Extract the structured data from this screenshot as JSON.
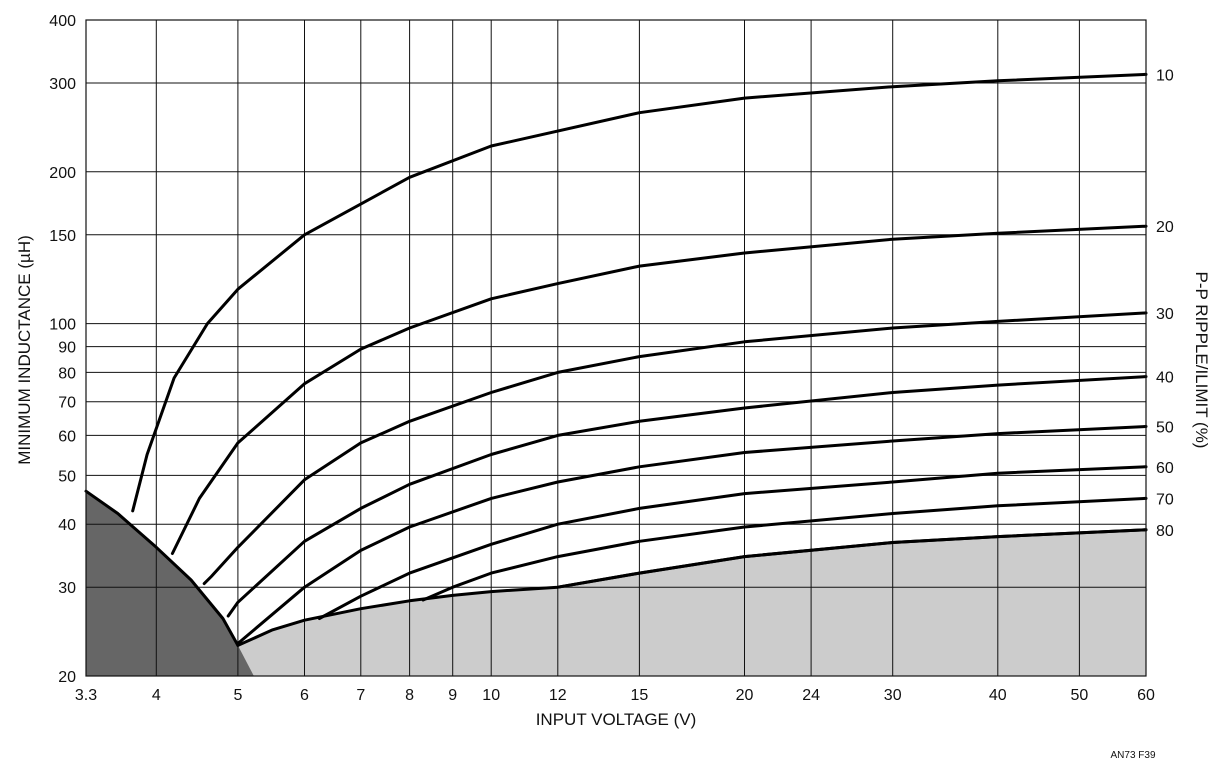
{
  "chart_data": {
    "type": "line",
    "xlabel": "INPUT VOLTAGE (V)",
    "ylabel": "MINIMUM INDUCTANCE (µH)",
    "y2label": "P-P RIPPLE/ILIMIT (%)",
    "figure_id": "AN73 F39",
    "x_scale": "log",
    "y_scale": "log",
    "xlim": [
      3.3,
      60
    ],
    "ylim": [
      20,
      400
    ],
    "grid": true,
    "x_ticks": [
      3.3,
      4,
      5,
      6,
      7,
      8,
      9,
      10,
      12,
      15,
      20,
      24,
      30,
      40,
      50,
      60
    ],
    "x_tick_labels": [
      "3.3",
      "4",
      "5",
      "6",
      "7",
      "8",
      "9",
      "10",
      "12",
      "15",
      "20",
      "24",
      "30",
      "40",
      "50",
      "60"
    ],
    "y_ticks": [
      20,
      30,
      40,
      50,
      60,
      70,
      80,
      90,
      100,
      150,
      200,
      300,
      400
    ],
    "y_tick_labels": [
      "20",
      "30",
      "40",
      "50",
      "60",
      "70",
      "80",
      "90",
      "100",
      "150",
      "200",
      "300",
      "400"
    ],
    "boundary_curve": {
      "x": [
        3.3,
        3.6,
        4.0,
        4.4,
        4.8,
        5.0
      ],
      "y": [
        46.5,
        42,
        36,
        31,
        26,
        23
      ]
    },
    "floor_curve": {
      "x": [
        5.0,
        5.5,
        6.0,
        7.0,
        8.0,
        9.0,
        10,
        12,
        15,
        20,
        30,
        40,
        60
      ],
      "y": [
        23,
        24.7,
        25.8,
        27.2,
        28.2,
        28.9,
        29.4,
        30,
        32,
        34.5,
        36.8,
        37.8,
        39
      ]
    },
    "series": [
      {
        "name": "10",
        "x": [
          3.75,
          3.9,
          4.2,
          4.6,
          5.0,
          6.0,
          8.0,
          10,
          15,
          20,
          30,
          40,
          60
        ],
        "y": [
          42.5,
          55,
          78,
          100,
          117,
          150,
          195,
          225,
          262,
          280,
          295,
          303,
          312
        ]
      },
      {
        "name": "20",
        "x": [
          4.18,
          4.5,
          5.0,
          6.0,
          7.0,
          8.0,
          10,
          12,
          15,
          20,
          30,
          40,
          60
        ],
        "y": [
          35,
          45,
          58,
          76,
          89,
          98,
          112,
          120,
          130,
          138,
          147,
          151,
          156
        ]
      },
      {
        "name": "30",
        "x": [
          4.56,
          4.65,
          5.0,
          6.0,
          7.0,
          8.0,
          10,
          12,
          15,
          20,
          30,
          40,
          60
        ],
        "y": [
          30.5,
          31.5,
          36,
          49,
          58,
          64,
          73,
          80,
          86,
          92,
          98,
          101,
          105
        ]
      },
      {
        "name": "40",
        "x": [
          4.87,
          5.0,
          6.0,
          7.0,
          8.0,
          10,
          12,
          15,
          20,
          30,
          40,
          60
        ],
        "y": [
          26.3,
          28,
          37,
          43,
          48,
          55,
          60,
          64,
          68,
          73,
          75.5,
          78.5
        ]
      },
      {
        "name": "50",
        "x": [
          5.0,
          6.0,
          7.0,
          8.0,
          10,
          12,
          15,
          20,
          30,
          40,
          60
        ],
        "y": [
          23.2,
          30,
          35.5,
          39.5,
          45,
          48.5,
          52,
          55.5,
          58.5,
          60.5,
          62.5
        ]
      },
      {
        "name": "60",
        "x": [
          6.25,
          7.0,
          8.0,
          10,
          12,
          15,
          20,
          30,
          40,
          60
        ],
        "y": [
          26,
          28.8,
          32,
          36.5,
          40,
          43,
          46,
          48.5,
          50.5,
          52
        ]
      },
      {
        "name": "70",
        "x": [
          8.3,
          9.0,
          10,
          12,
          15,
          20,
          30,
          40,
          60
        ],
        "y": [
          28.3,
          30,
          32,
          34.5,
          37,
          39.5,
          42,
          43.5,
          45
        ]
      },
      {
        "name": "80",
        "x": [
          12,
          15,
          20,
          30,
          40,
          60
        ],
        "y": [
          30,
          32,
          34.5,
          36.8,
          37.8,
          39
        ]
      }
    ],
    "colors": {
      "dark_region": "#666666",
      "light_region": "#cccccc",
      "line": "#000000"
    }
  }
}
